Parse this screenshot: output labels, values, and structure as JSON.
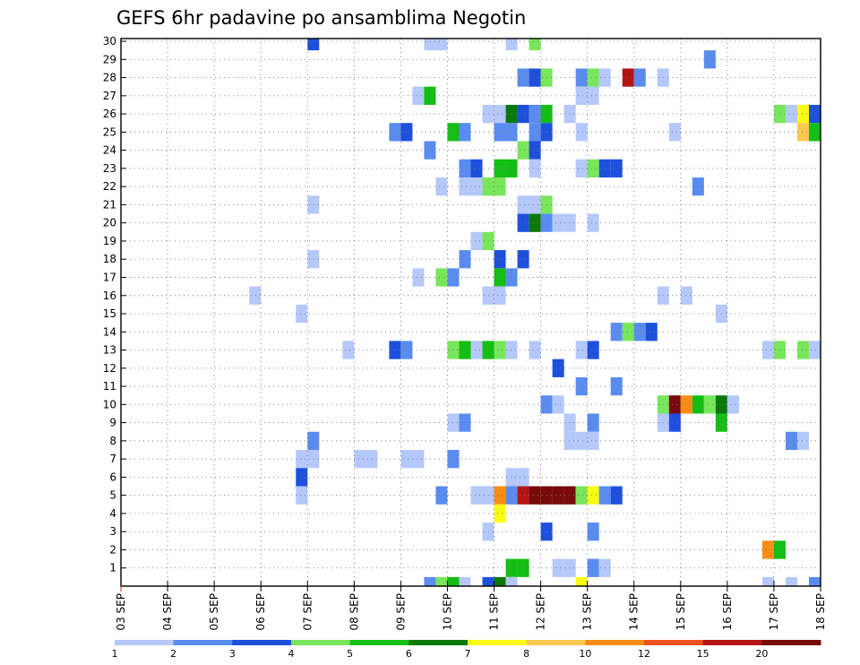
{
  "chart_data": {
    "type": "heatmap",
    "title": "GEFS 6hr padavine po ansamblima Negotin",
    "xlabel": "",
    "ylabel": "",
    "x_ticks": [
      "03 SEP",
      "04 SEP",
      "05 SEP",
      "06 SEP",
      "07 SEP",
      "08 SEP",
      "09 SEP",
      "10 SEP",
      "11 SEP",
      "12 SEP",
      "13 SEP",
      "14 SEP",
      "15 SEP",
      "16 SEP",
      "17 SEP",
      "18 SEP"
    ],
    "y_ticks": [
      1,
      2,
      3,
      4,
      5,
      6,
      7,
      8,
      9,
      10,
      11,
      12,
      13,
      14,
      15,
      16,
      17,
      18,
      19,
      20,
      21,
      22,
      23,
      24,
      25,
      26,
      27,
      28,
      29,
      30
    ],
    "x_step_hours": 6,
    "grid": true,
    "colorbar": {
      "labels": [
        "1",
        "2",
        "3",
        "4",
        "5",
        "6",
        "7",
        "8",
        "10",
        "12",
        "15",
        "20"
      ],
      "colors": [
        "#b4c8fa",
        "#5a8cf0",
        "#1e50dc",
        "#78e65a",
        "#14be14",
        "#0a780a",
        "#fafa14",
        "#fac850",
        "#fa8c14",
        "#f0501e",
        "#b41414",
        "#780a0a"
      ]
    },
    "cells": [
      {
        "m": 30,
        "t": "07 SEP 00",
        "v": 3
      },
      {
        "m": 30,
        "t": "09 SEP 12",
        "v": 1
      },
      {
        "m": 30,
        "t": "09 SEP 18",
        "v": 1
      },
      {
        "m": 30,
        "t": "11 SEP 06",
        "v": 1
      },
      {
        "m": 30,
        "t": "11 SEP 18",
        "v": 4
      },
      {
        "m": 29,
        "t": "15 SEP 12",
        "v": 2
      },
      {
        "m": 28,
        "t": "11 SEP 12",
        "v": 2
      },
      {
        "m": 28,
        "t": "11 SEP 18",
        "v": 3
      },
      {
        "m": 28,
        "t": "12 SEP 00",
        "v": 4
      },
      {
        "m": 28,
        "t": "12 SEP 18",
        "v": 2
      },
      {
        "m": 28,
        "t": "13 SEP 00",
        "v": 4
      },
      {
        "m": 28,
        "t": "13 SEP 06",
        "v": 1
      },
      {
        "m": 28,
        "t": "13 SEP 18",
        "v": 15
      },
      {
        "m": 28,
        "t": "14 SEP 00",
        "v": 2
      },
      {
        "m": 28,
        "t": "14 SEP 12",
        "v": 1
      },
      {
        "m": 27,
        "t": "09 SEP 06",
        "v": 1
      },
      {
        "m": 27,
        "t": "09 SEP 12",
        "v": 5
      },
      {
        "m": 27,
        "t": "12 SEP 18",
        "v": 1
      },
      {
        "m": 27,
        "t": "13 SEP 00",
        "v": 1
      },
      {
        "m": 26,
        "t": "10 SEP 18",
        "v": 1
      },
      {
        "m": 26,
        "t": "11 SEP 00",
        "v": 1
      },
      {
        "m": 26,
        "t": "11 SEP 06",
        "v": 6
      },
      {
        "m": 26,
        "t": "11 SEP 12",
        "v": 3
      },
      {
        "m": 26,
        "t": "11 SEP 18",
        "v": 2
      },
      {
        "m": 26,
        "t": "12 SEP 00",
        "v": 5
      },
      {
        "m": 26,
        "t": "12 SEP 12",
        "v": 1
      },
      {
        "m": 26,
        "t": "17 SEP 00",
        "v": 4
      },
      {
        "m": 26,
        "t": "17 SEP 06",
        "v": 1
      },
      {
        "m": 26,
        "t": "17 SEP 12",
        "v": 7
      },
      {
        "m": 26,
        "t": "17 SEP 18",
        "v": 3
      },
      {
        "m": 25,
        "t": "08 SEP 18",
        "v": 2
      },
      {
        "m": 25,
        "t": "09 SEP 00",
        "v": 3
      },
      {
        "m": 25,
        "t": "10 SEP 00",
        "v": 5
      },
      {
        "m": 25,
        "t": "10 SEP 06",
        "v": 2
      },
      {
        "m": 25,
        "t": "11 SEP 00",
        "v": 2
      },
      {
        "m": 25,
        "t": "11 SEP 06",
        "v": 2
      },
      {
        "m": 25,
        "t": "11 SEP 18",
        "v": 2
      },
      {
        "m": 25,
        "t": "12 SEP 00",
        "v": 3
      },
      {
        "m": 25,
        "t": "12 SEP 18",
        "v": 1
      },
      {
        "m": 25,
        "t": "14 SEP 18",
        "v": 1
      },
      {
        "m": 25,
        "t": "17 SEP 12",
        "v": 8
      },
      {
        "m": 25,
        "t": "17 SEP 18",
        "v": 5
      },
      {
        "m": 24,
        "t": "09 SEP 12",
        "v": 2
      },
      {
        "m": 24,
        "t": "11 SEP 12",
        "v": 4
      },
      {
        "m": 24,
        "t": "11 SEP 18",
        "v": 3
      },
      {
        "m": 23,
        "t": "10 SEP 06",
        "v": 2
      },
      {
        "m": 23,
        "t": "10 SEP 12",
        "v": 3
      },
      {
        "m": 23,
        "t": "11 SEP 00",
        "v": 5
      },
      {
        "m": 23,
        "t": "11 SEP 06",
        "v": 5
      },
      {
        "m": 23,
        "t": "11 SEP 18",
        "v": 1
      },
      {
        "m": 23,
        "t": "12 SEP 18",
        "v": 1
      },
      {
        "m": 23,
        "t": "13 SEP 00",
        "v": 4
      },
      {
        "m": 23,
        "t": "13 SEP 06",
        "v": 3
      },
      {
        "m": 23,
        "t": "13 SEP 12",
        "v": 3
      },
      {
        "m": 22,
        "t": "09 SEP 18",
        "v": 1
      },
      {
        "m": 22,
        "t": "10 SEP 06",
        "v": 1
      },
      {
        "m": 22,
        "t": "10 SEP 12",
        "v": 1
      },
      {
        "m": 22,
        "t": "10 SEP 18",
        "v": 4
      },
      {
        "m": 22,
        "t": "11 SEP 00",
        "v": 4
      },
      {
        "m": 22,
        "t": "15 SEP 06",
        "v": 2
      },
      {
        "m": 21,
        "t": "07 SEP 00",
        "v": 1
      },
      {
        "m": 21,
        "t": "11 SEP 12",
        "v": 1
      },
      {
        "m": 21,
        "t": "11 SEP 18",
        "v": 1
      },
      {
        "m": 21,
        "t": "12 SEP 00",
        "v": 4
      },
      {
        "m": 20,
        "t": "11 SEP 12",
        "v": 3
      },
      {
        "m": 20,
        "t": "11 SEP 18",
        "v": 6
      },
      {
        "m": 20,
        "t": "12 SEP 00",
        "v": 2
      },
      {
        "m": 20,
        "t": "12 SEP 06",
        "v": 1
      },
      {
        "m": 20,
        "t": "12 SEP 12",
        "v": 1
      },
      {
        "m": 20,
        "t": "13 SEP 00",
        "v": 1
      },
      {
        "m": 19,
        "t": "10 SEP 12",
        "v": 1
      },
      {
        "m": 19,
        "t": "10 SEP 18",
        "v": 4
      },
      {
        "m": 18,
        "t": "07 SEP 00",
        "v": 1
      },
      {
        "m": 18,
        "t": "10 SEP 06",
        "v": 2
      },
      {
        "m": 18,
        "t": "11 SEP 00",
        "v": 3
      },
      {
        "m": 18,
        "t": "11 SEP 12",
        "v": 3
      },
      {
        "m": 17,
        "t": "09 SEP 06",
        "v": 1
      },
      {
        "m": 17,
        "t": "09 SEP 18",
        "v": 4
      },
      {
        "m": 17,
        "t": "10 SEP 00",
        "v": 2
      },
      {
        "m": 17,
        "t": "11 SEP 00",
        "v": 5
      },
      {
        "m": 17,
        "t": "11 SEP 06",
        "v": 2
      },
      {
        "m": 16,
        "t": "05 SEP 18",
        "v": 1
      },
      {
        "m": 16,
        "t": "10 SEP 18",
        "v": 1
      },
      {
        "m": 16,
        "t": "11 SEP 00",
        "v": 1
      },
      {
        "m": 16,
        "t": "14 SEP 12",
        "v": 1
      },
      {
        "m": 16,
        "t": "15 SEP 00",
        "v": 1
      },
      {
        "m": 15,
        "t": "06 SEP 18",
        "v": 1
      },
      {
        "m": 15,
        "t": "15 SEP 18",
        "v": 1
      },
      {
        "m": 14,
        "t": "13 SEP 12",
        "v": 2
      },
      {
        "m": 14,
        "t": "13 SEP 18",
        "v": 4
      },
      {
        "m": 14,
        "t": "14 SEP 00",
        "v": 2
      },
      {
        "m": 14,
        "t": "14 SEP 06",
        "v": 3
      },
      {
        "m": 13,
        "t": "07 SEP 18",
        "v": 1
      },
      {
        "m": 13,
        "t": "08 SEP 18",
        "v": 3
      },
      {
        "m": 13,
        "t": "09 SEP 00",
        "v": 2
      },
      {
        "m": 13,
        "t": "10 SEP 00",
        "v": 4
      },
      {
        "m": 13,
        "t": "10 SEP 06",
        "v": 5
      },
      {
        "m": 13,
        "t": "10 SEP 12",
        "v": 1
      },
      {
        "m": 13,
        "t": "10 SEP 18",
        "v": 5
      },
      {
        "m": 13,
        "t": "11 SEP 00",
        "v": 4
      },
      {
        "m": 13,
        "t": "11 SEP 06",
        "v": 1
      },
      {
        "m": 13,
        "t": "11 SEP 18",
        "v": 1
      },
      {
        "m": 13,
        "t": "12 SEP 18",
        "v": 1
      },
      {
        "m": 13,
        "t": "13 SEP 00",
        "v": 3
      },
      {
        "m": 13,
        "t": "16 SEP 18",
        "v": 1
      },
      {
        "m": 13,
        "t": "17 SEP 00",
        "v": 4
      },
      {
        "m": 13,
        "t": "17 SEP 12",
        "v": 4
      },
      {
        "m": 13,
        "t": "17 SEP 18",
        "v": 1
      },
      {
        "m": 12,
        "t": "12 SEP 06",
        "v": 3
      },
      {
        "m": 11,
        "t": "12 SEP 18",
        "v": 2
      },
      {
        "m": 11,
        "t": "13 SEP 12",
        "v": 2
      },
      {
        "m": 10,
        "t": "12 SEP 00",
        "v": 2
      },
      {
        "m": 10,
        "t": "12 SEP 06",
        "v": 1
      },
      {
        "m": 10,
        "t": "14 SEP 12",
        "v": 4
      },
      {
        "m": 10,
        "t": "14 SEP 18",
        "v": 20
      },
      {
        "m": 10,
        "t": "15 SEP 00",
        "v": 10
      },
      {
        "m": 10,
        "t": "15 SEP 06",
        "v": 5
      },
      {
        "m": 10,
        "t": "15 SEP 12",
        "v": 4
      },
      {
        "m": 10,
        "t": "15 SEP 18",
        "v": 6
      },
      {
        "m": 10,
        "t": "16 SEP 00",
        "v": 1
      },
      {
        "m": 9,
        "t": "10 SEP 00",
        "v": 1
      },
      {
        "m": 9,
        "t": "10 SEP 06",
        "v": 2
      },
      {
        "m": 9,
        "t": "12 SEP 12",
        "v": 1
      },
      {
        "m": 9,
        "t": "13 SEP 00",
        "v": 2
      },
      {
        "m": 9,
        "t": "14 SEP 12",
        "v": 1
      },
      {
        "m": 9,
        "t": "14 SEP 18",
        "v": 3
      },
      {
        "m": 9,
        "t": "15 SEP 18",
        "v": 5
      },
      {
        "m": 8,
        "t": "07 SEP 00",
        "v": 2
      },
      {
        "m": 8,
        "t": "12 SEP 12",
        "v": 1
      },
      {
        "m": 8,
        "t": "12 SEP 18",
        "v": 1
      },
      {
        "m": 8,
        "t": "13 SEP 00",
        "v": 1
      },
      {
        "m": 8,
        "t": "17 SEP 06",
        "v": 2
      },
      {
        "m": 8,
        "t": "17 SEP 12",
        "v": 1
      },
      {
        "m": 7,
        "t": "06 SEP 18",
        "v": 1
      },
      {
        "m": 7,
        "t": "07 SEP 00",
        "v": 1
      },
      {
        "m": 7,
        "t": "08 SEP 00",
        "v": 1
      },
      {
        "m": 7,
        "t": "08 SEP 06",
        "v": 1
      },
      {
        "m": 7,
        "t": "09 SEP 00",
        "v": 1
      },
      {
        "m": 7,
        "t": "09 SEP 06",
        "v": 1
      },
      {
        "m": 7,
        "t": "10 SEP 00",
        "v": 2
      },
      {
        "m": 6,
        "t": "06 SEP 18",
        "v": 3
      },
      {
        "m": 6,
        "t": "11 SEP 06",
        "v": 1
      },
      {
        "m": 6,
        "t": "11 SEP 12",
        "v": 1
      },
      {
        "m": 5,
        "t": "06 SEP 18",
        "v": 1
      },
      {
        "m": 5,
        "t": "09 SEP 18",
        "v": 2
      },
      {
        "m": 5,
        "t": "10 SEP 12",
        "v": 1
      },
      {
        "m": 5,
        "t": "10 SEP 18",
        "v": 1
      },
      {
        "m": 5,
        "t": "11 SEP 00",
        "v": 10
      },
      {
        "m": 5,
        "t": "11 SEP 06",
        "v": 2
      },
      {
        "m": 5,
        "t": "11 SEP 12",
        "v": 15
      },
      {
        "m": 5,
        "t": "11 SEP 18",
        "v": 20
      },
      {
        "m": 5,
        "t": "12 SEP 00",
        "v": 20
      },
      {
        "m": 5,
        "t": "12 SEP 06",
        "v": 20
      },
      {
        "m": 5,
        "t": "12 SEP 12",
        "v": 20
      },
      {
        "m": 5,
        "t": "12 SEP 18",
        "v": 4
      },
      {
        "m": 5,
        "t": "13 SEP 00",
        "v": 7
      },
      {
        "m": 5,
        "t": "13 SEP 06",
        "v": 2
      },
      {
        "m": 5,
        "t": "13 SEP 12",
        "v": 3
      },
      {
        "m": 4,
        "t": "11 SEP 00",
        "v": 7
      },
      {
        "m": 3,
        "t": "10 SEP 18",
        "v": 1
      },
      {
        "m": 3,
        "t": "12 SEP 00",
        "v": 3
      },
      {
        "m": 3,
        "t": "13 SEP 00",
        "v": 2
      },
      {
        "m": 2,
        "t": "16 SEP 18",
        "v": 10
      },
      {
        "m": 2,
        "t": "17 SEP 00",
        "v": 5
      },
      {
        "m": 1,
        "t": "11 SEP 06",
        "v": 5
      },
      {
        "m": 1,
        "t": "11 SEP 12",
        "v": 5
      },
      {
        "m": 1,
        "t": "12 SEP 06",
        "v": 1
      },
      {
        "m": 1,
        "t": "12 SEP 12",
        "v": 1
      },
      {
        "m": 1,
        "t": "13 SEP 00",
        "v": 2
      },
      {
        "m": 1,
        "t": "13 SEP 06",
        "v": 1
      },
      {
        "m": 0,
        "t": "09 SEP 12",
        "v": 2
      },
      {
        "m": 0,
        "t": "09 SEP 18",
        "v": 4
      },
      {
        "m": 0,
        "t": "10 SEP 00",
        "v": 5
      },
      {
        "m": 0,
        "t": "10 SEP 06",
        "v": 1
      },
      {
        "m": 0,
        "t": "10 SEP 18",
        "v": 3
      },
      {
        "m": 0,
        "t": "11 SEP 00",
        "v": 6
      },
      {
        "m": 0,
        "t": "11 SEP 06",
        "v": 1
      },
      {
        "m": 0,
        "t": "12 SEP 18",
        "v": 7
      },
      {
        "m": 0,
        "t": "16 SEP 18",
        "v": 1
      },
      {
        "m": 0,
        "t": "17 SEP 06",
        "v": 1
      },
      {
        "m": 0,
        "t": "17 SEP 18",
        "v": 2
      }
    ]
  }
}
